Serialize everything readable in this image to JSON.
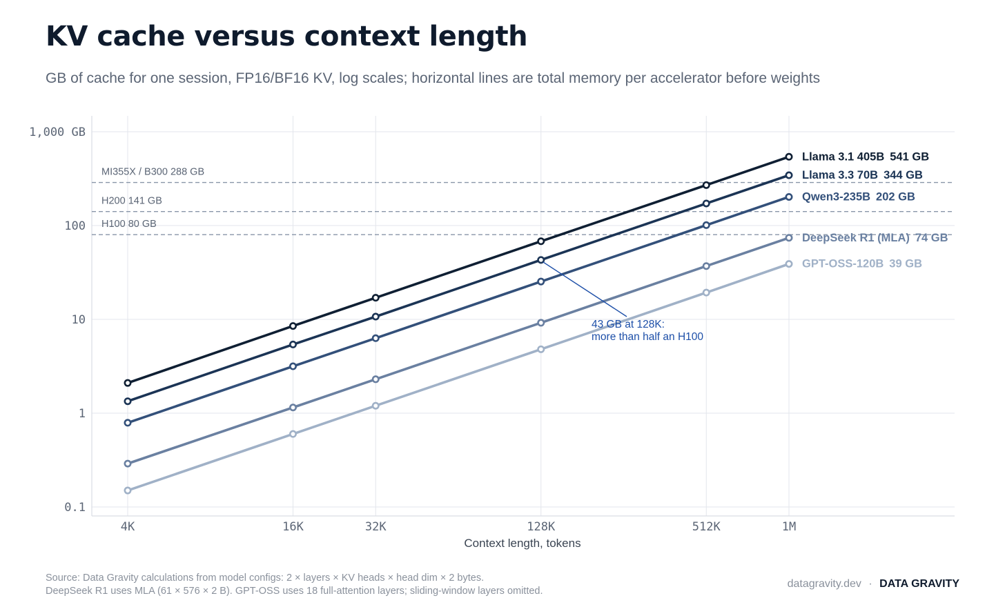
{
  "title": "KV cache versus context length",
  "subtitle": "GB of cache for one session, FP16/BF16 KV, log scales; horizontal lines are total memory per accelerator before weights",
  "chart_data": {
    "type": "line",
    "xscale": "log",
    "yscale": "log",
    "xlabel": "Context length, tokens",
    "ylabel": "",
    "x": [
      4096,
      16384,
      32768,
      131072,
      524288,
      1048576
    ],
    "x_tick_labels": [
      "4K",
      "16K",
      "32K",
      "128K",
      "512K",
      "1M"
    ],
    "ylim": [
      0.1,
      1000
    ],
    "y_ticks": [
      0.1,
      1,
      10,
      100,
      1000
    ],
    "y_tick_labels": [
      "0.1",
      "1",
      "10",
      "100",
      "1,000 GB"
    ],
    "grid": true,
    "series": [
      {
        "name": "Llama 3.1 405B",
        "end_label": "541 GB",
        "color": "#0f1f33",
        "values": [
          2.1,
          8.5,
          17,
          68,
          270,
          541
        ]
      },
      {
        "name": "Llama 3.3 70B",
        "end_label": "344 GB",
        "color": "#1b3455",
        "values": [
          1.34,
          5.4,
          10.7,
          43,
          172,
          344
        ]
      },
      {
        "name": "Qwen3-235B",
        "end_label": "202 GB",
        "color": "#33507a",
        "values": [
          0.79,
          3.16,
          6.3,
          25.3,
          101,
          202
        ]
      },
      {
        "name": "DeepSeek R1 (MLA)",
        "end_label": "74 GB",
        "color": "#6a80a1",
        "values": [
          0.29,
          1.15,
          2.3,
          9.2,
          37,
          74
        ]
      },
      {
        "name": "GPT-OSS-120B",
        "end_label": "39 GB",
        "color": "#a0b1c7",
        "values": [
          0.15,
          0.6,
          1.2,
          4.8,
          19.3,
          39
        ]
      }
    ],
    "reference_lines": [
      {
        "label": "MI355X / B300  288 GB",
        "value": 288
      },
      {
        "label": "H200  141 GB",
        "value": 141
      },
      {
        "label": "H100  80 GB",
        "value": 80
      }
    ],
    "annotation": {
      "line1": "43 GB at 128K:",
      "line2": "more than half an H100",
      "x": 131072,
      "y": 43,
      "color": "#1d4fa8"
    }
  },
  "footer": {
    "source_line1": "Source: Data Gravity calculations from model configs: 2 × layers × KV heads × head dim × 2 bytes.",
    "source_line2": "DeepSeek R1 uses MLA (61 × 576 × 2 B). GPT-OSS uses 18 full-attention layers; sliding-window layers omitted.",
    "site": "datagravity.dev",
    "separator": "·",
    "brand": "DATA GRAVITY"
  }
}
